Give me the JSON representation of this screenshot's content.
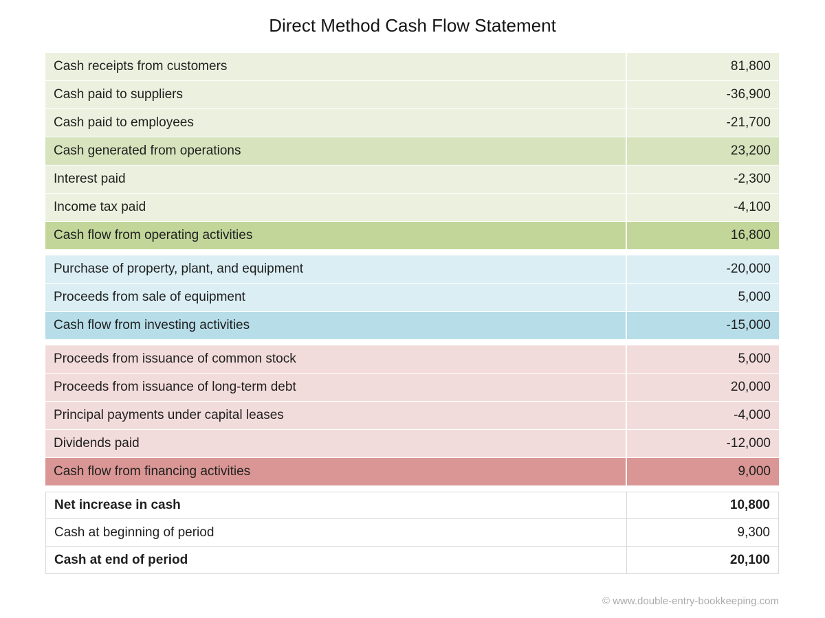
{
  "title": "Direct Method Cash Flow Statement",
  "footer": "© www.double-entry-bookkeeping.com",
  "colors": {
    "operating_row": "#ebf1de",
    "operating_subtotal": "#d6e3bc",
    "operating_total": "#c2d69a",
    "investing_row": "#daeef3",
    "investing_total": "#b6dde8",
    "financing_row": "#f2dcdb",
    "financing_total": "#d99694",
    "summary_border": "#d9d9d9",
    "text": "#1f1f1f",
    "footer_text": "#ababab"
  },
  "sections": {
    "operating": {
      "rows": [
        {
          "label": "Cash receipts from customers",
          "value": "81,800"
        },
        {
          "label": "Cash paid to suppliers",
          "value": "-36,900"
        },
        {
          "label": "Cash paid to employees",
          "value": "-21,700"
        },
        {
          "label": "Cash generated from operations",
          "value": "23,200"
        },
        {
          "label": "Interest paid",
          "value": "-2,300"
        },
        {
          "label": "Income tax paid",
          "value": "-4,100"
        },
        {
          "label": "Cash flow from operating activities",
          "value": "16,800"
        }
      ]
    },
    "investing": {
      "rows": [
        {
          "label": "Purchase of property, plant, and equipment",
          "value": "-20,000"
        },
        {
          "label": "Proceeds from sale of equipment",
          "value": "5,000"
        },
        {
          "label": "Cash flow from investing activities",
          "value": "-15,000"
        }
      ]
    },
    "financing": {
      "rows": [
        {
          "label": "Proceeds from issuance of common stock",
          "value": "5,000"
        },
        {
          "label": "Proceeds from issuance of long-term debt",
          "value": "20,000"
        },
        {
          "label": "Principal payments under capital leases",
          "value": "-4,000"
        },
        {
          "label": "Dividends paid",
          "value": "-12,000"
        },
        {
          "label": "Cash flow from financing activities",
          "value": "9,000"
        }
      ]
    },
    "summary": {
      "rows": [
        {
          "label": "Net increase in cash",
          "value": "10,800"
        },
        {
          "label": "Cash at beginning of period",
          "value": "9,300"
        },
        {
          "label": "Cash at end of period",
          "value": "20,100"
        }
      ]
    }
  }
}
